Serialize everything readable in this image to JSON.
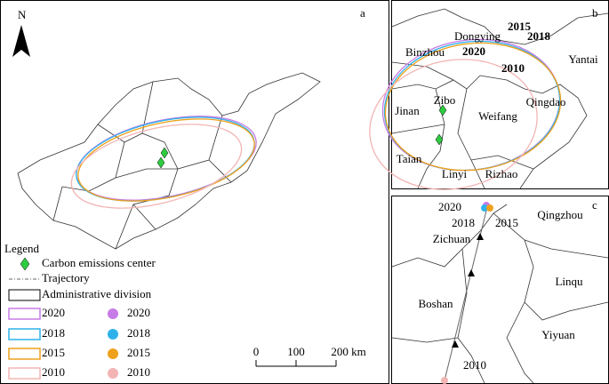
{
  "panel_a": {
    "letter": "a",
    "north": "N",
    "legend": {
      "title": "Legend",
      "center": "Carbon emissions center",
      "trajectory": "Trajectory",
      "division": "Administrative division",
      "items": [
        {
          "year": "2020",
          "color": "#c77be6"
        },
        {
          "year": "2018",
          "color": "#2fb2ea"
        },
        {
          "year": "2015",
          "color": "#eea11c"
        },
        {
          "year": "2010",
          "color": "#f3b4b4"
        }
      ]
    },
    "scale": [
      "0",
      "100",
      "200 km"
    ]
  },
  "panel_b": {
    "letter": "b",
    "labels": [
      "Dongying",
      "2015",
      "2018",
      "2020",
      "Binzhou",
      "Yantai",
      "2010",
      "Zibo",
      "Jinan",
      "Weifang",
      "Qingdao",
      "Taian",
      "Linyi",
      "Rizhao"
    ]
  },
  "panel_c": {
    "letter": "c",
    "labels": [
      "2020",
      "2018",
      "2015",
      "Qingzhou",
      "Zichuan",
      "Linqu",
      "Boshan",
      "Yiyuan",
      "2010"
    ]
  }
}
